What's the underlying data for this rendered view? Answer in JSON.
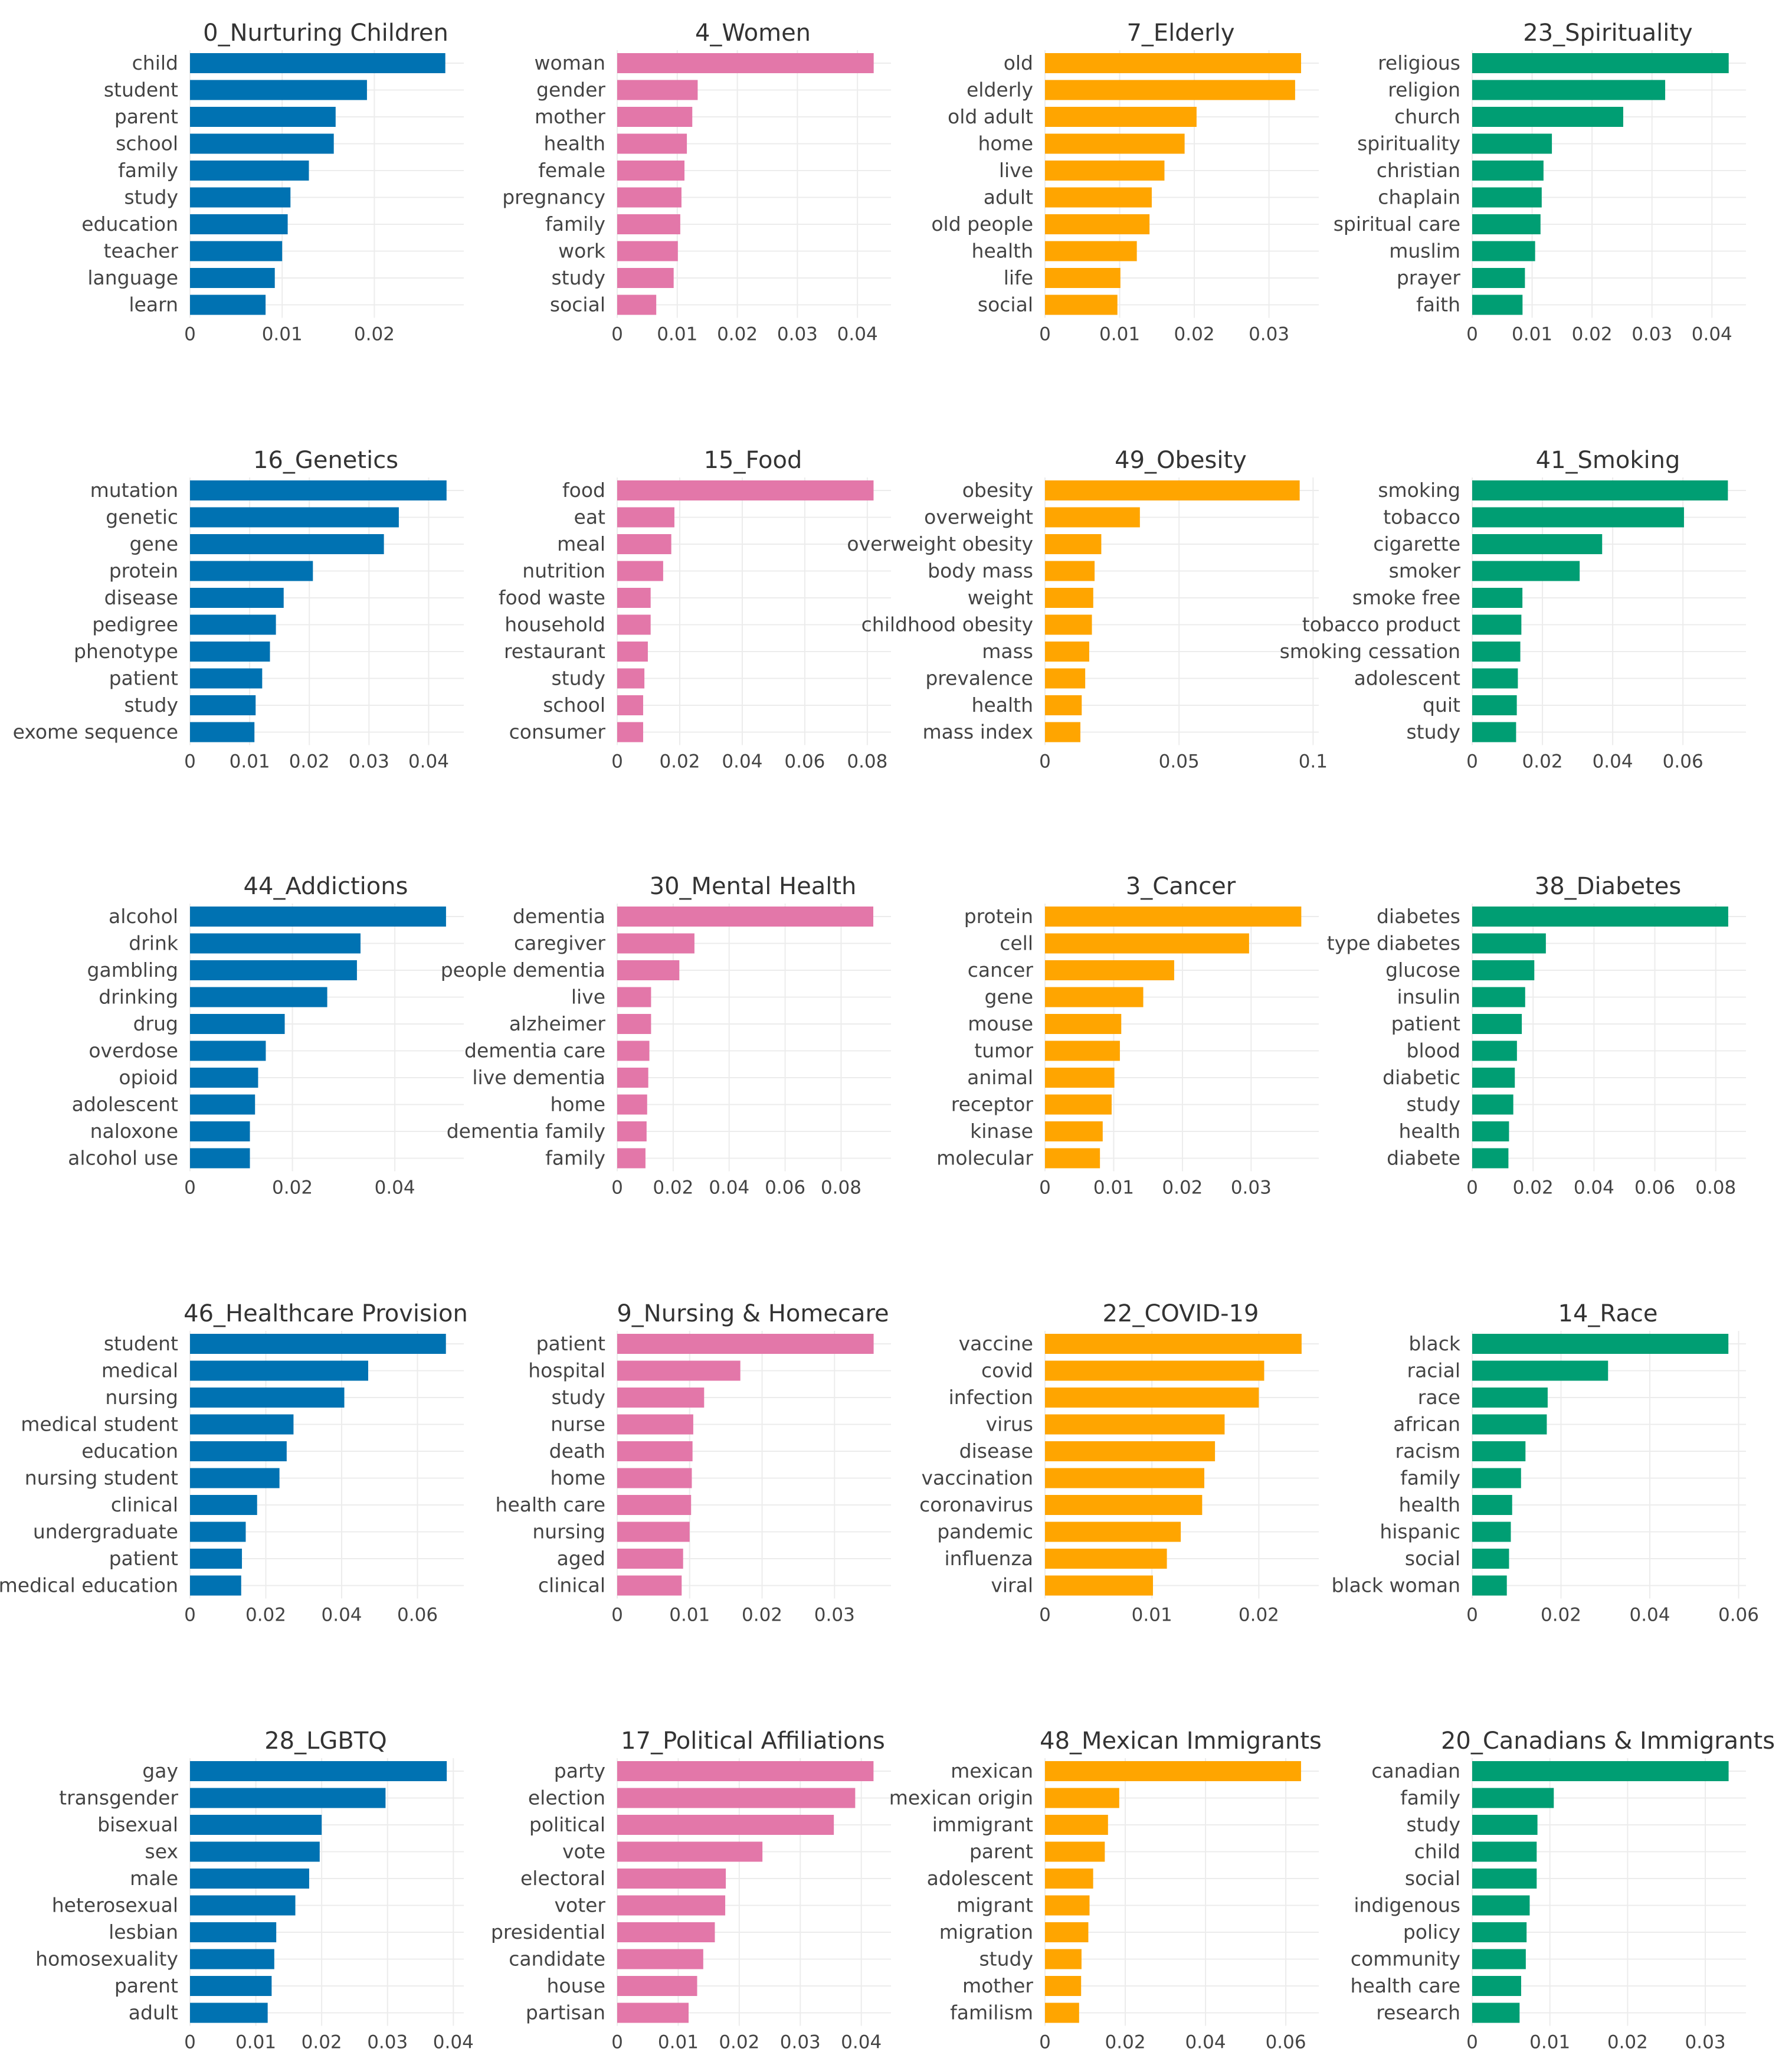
{
  "colors": {
    "blue": "#0072b2",
    "pink": "#e377a9",
    "orange": "#ffa500",
    "green": "#009e73"
  },
  "chart_data": [
    {
      "type": "bar",
      "orientation": "horizontal",
      "title": "0_Nurturing Children",
      "color": "blue",
      "categories": [
        "child",
        "student",
        "parent",
        "school",
        "family",
        "study",
        "education",
        "teacher",
        "language",
        "learn"
      ],
      "values": [
        0.0277,
        0.0192,
        0.0158,
        0.0156,
        0.0129,
        0.0109,
        0.0106,
        0.01,
        0.0092,
        0.0082
      ],
      "xlim": [
        0,
        0.029
      ],
      "ticks": [
        0,
        0.01,
        0.02
      ],
      "tick_labels": [
        "0",
        "0.01",
        "0.02"
      ]
    },
    {
      "type": "bar",
      "orientation": "horizontal",
      "title": "4_Women",
      "color": "pink",
      "categories": [
        "woman",
        "gender",
        "mother",
        "health",
        "female",
        "pregnancy",
        "family",
        "work",
        "study",
        "social"
      ],
      "values": [
        0.0427,
        0.0134,
        0.0125,
        0.0116,
        0.0112,
        0.0107,
        0.0105,
        0.0101,
        0.0094,
        0.0065
      ],
      "xlim": [
        0,
        0.0445
      ],
      "ticks": [
        0,
        0.01,
        0.02,
        0.03,
        0.04
      ],
      "tick_labels": [
        "0",
        "0.01",
        "0.02",
        "0.03",
        "0.04"
      ]
    },
    {
      "type": "bar",
      "orientation": "horizontal",
      "title": "7_Elderly",
      "color": "orange",
      "categories": [
        "old",
        "elderly",
        "old adult",
        "home",
        "live",
        "adult",
        "old people",
        "health",
        "life",
        "social"
      ],
      "values": [
        0.0343,
        0.0335,
        0.0203,
        0.0187,
        0.016,
        0.0143,
        0.014,
        0.0123,
        0.0101,
        0.0097
      ],
      "xlim": [
        0,
        0.0358
      ],
      "ticks": [
        0,
        0.01,
        0.02,
        0.03
      ],
      "tick_labels": [
        "0",
        "0.01",
        "0.02",
        "0.03"
      ]
    },
    {
      "type": "bar",
      "orientation": "horizontal",
      "title": "23_Spirituality",
      "color": "green",
      "categories": [
        "religious",
        "religion",
        "church",
        "spirituality",
        "christian",
        "chaplain",
        "spiritual care",
        "muslim",
        "prayer",
        "faith"
      ],
      "values": [
        0.0428,
        0.0322,
        0.0252,
        0.0133,
        0.0119,
        0.0116,
        0.0114,
        0.0105,
        0.0088,
        0.0084
      ],
      "xlim": [
        0,
        0.0446
      ],
      "ticks": [
        0,
        0.01,
        0.02,
        0.03,
        0.04
      ],
      "tick_labels": [
        "0",
        "0.01",
        "0.02",
        "0.03",
        "0.04"
      ]
    },
    {
      "type": "bar",
      "orientation": "horizontal",
      "title": "16_Genetics",
      "color": "blue",
      "categories": [
        "mutation",
        "genetic",
        "gene",
        "protein",
        "disease",
        "pedigree",
        "phenotype",
        "patient",
        "study",
        "exome sequence"
      ],
      "values": [
        0.043,
        0.035,
        0.0325,
        0.0206,
        0.0157,
        0.0144,
        0.0134,
        0.0121,
        0.011,
        0.0108
      ],
      "xlim": [
        0,
        0.0448
      ],
      "ticks": [
        0,
        0.01,
        0.02,
        0.03,
        0.04
      ],
      "tick_labels": [
        "0",
        "0.01",
        "0.02",
        "0.03",
        "0.04"
      ]
    },
    {
      "type": "bar",
      "orientation": "horizontal",
      "title": "15_Food",
      "color": "pink",
      "categories": [
        "food",
        "eat",
        "meal",
        "nutrition",
        "food waste",
        "household",
        "restaurant",
        "study",
        "school",
        "consumer"
      ],
      "values": [
        0.082,
        0.0183,
        0.0173,
        0.0147,
        0.0107,
        0.0107,
        0.0098,
        0.0087,
        0.0083,
        0.0083
      ],
      "xlim": [
        0,
        0.0855
      ],
      "ticks": [
        0,
        0.02,
        0.04,
        0.06,
        0.08
      ],
      "tick_labels": [
        "0",
        "0.02",
        "0.04",
        "0.06",
        "0.08"
      ]
    },
    {
      "type": "bar",
      "orientation": "horizontal",
      "title": "49_Obesity",
      "color": "orange",
      "categories": [
        "obesity",
        "overweight",
        "overweight obesity",
        "body mass",
        "weight",
        "childhood obesity",
        "mass",
        "prevalence",
        "health",
        "mass index"
      ],
      "values": [
        0.095,
        0.0354,
        0.021,
        0.0185,
        0.018,
        0.0175,
        0.0165,
        0.015,
        0.0137,
        0.0132
      ],
      "xlim": [
        0,
        0.0997
      ],
      "ticks": [
        0,
        0.05,
        0.1
      ],
      "tick_labels": [
        "0",
        "0.05",
        "0.1"
      ]
    },
    {
      "type": "bar",
      "orientation": "horizontal",
      "title": "41_Smoking",
      "color": "green",
      "categories": [
        "smoking",
        "tobacco",
        "cigarette",
        "smoker",
        "smoke free",
        "tobacco product",
        "smoking cessation",
        "adolescent",
        "quit",
        "study"
      ],
      "values": [
        0.0728,
        0.0603,
        0.037,
        0.0306,
        0.0143,
        0.014,
        0.0137,
        0.013,
        0.0127,
        0.0125
      ],
      "xlim": [
        0,
        0.0761
      ],
      "ticks": [
        0,
        0.02,
        0.04,
        0.06
      ],
      "tick_labels": [
        "0",
        "0.02",
        "0.04",
        "0.06"
      ]
    },
    {
      "type": "bar",
      "orientation": "horizontal",
      "title": "44_Addictions",
      "color": "blue",
      "categories": [
        "alcohol",
        "drink",
        "gambling",
        "drinking",
        "drug",
        "overdose",
        "opioid",
        "adolescent",
        "naloxone",
        "alcohol use"
      ],
      "values": [
        0.05,
        0.0333,
        0.0326,
        0.0268,
        0.0185,
        0.0148,
        0.0133,
        0.0127,
        0.0117,
        0.0117
      ],
      "xlim": [
        0,
        0.0522
      ],
      "ticks": [
        0,
        0.02,
        0.04
      ],
      "tick_labels": [
        "0",
        "0.02",
        "0.04"
      ]
    },
    {
      "type": "bar",
      "orientation": "horizontal",
      "title": "30_Mental Health",
      "color": "pink",
      "categories": [
        "dementia",
        "caregiver",
        "people dementia",
        "live",
        "alzheimer",
        "dementia care",
        "live dementia",
        "home",
        "dementia family",
        "family"
      ],
      "values": [
        0.0915,
        0.0276,
        0.0222,
        0.0121,
        0.0121,
        0.0115,
        0.0111,
        0.0107,
        0.0105,
        0.0101
      ],
      "xlim": [
        0,
        0.0955
      ],
      "ticks": [
        0,
        0.02,
        0.04,
        0.06,
        0.08
      ],
      "tick_labels": [
        "0",
        "0.02",
        "0.04",
        "0.06",
        "0.08"
      ]
    },
    {
      "type": "bar",
      "orientation": "horizontal",
      "title": "3_Cancer",
      "color": "orange",
      "categories": [
        "protein",
        "cell",
        "cancer",
        "gene",
        "mouse",
        "tumor",
        "animal",
        "receptor",
        "kinase",
        "molecular"
      ],
      "values": [
        0.0373,
        0.0297,
        0.0188,
        0.0143,
        0.0111,
        0.0109,
        0.0101,
        0.0097,
        0.0084,
        0.008
      ],
      "xlim": [
        0,
        0.0389
      ],
      "ticks": [
        0,
        0.01,
        0.02,
        0.03
      ],
      "tick_labels": [
        "0",
        "0.01",
        "0.02",
        "0.03"
      ]
    },
    {
      "type": "bar",
      "orientation": "horizontal",
      "title": "38_Diabetes",
      "color": "green",
      "categories": [
        "diabetes",
        "type diabetes",
        "glucose",
        "insulin",
        "patient",
        "blood",
        "diabetic",
        "study",
        "health",
        "diabete"
      ],
      "values": [
        0.0841,
        0.0242,
        0.0204,
        0.0174,
        0.0163,
        0.0147,
        0.014,
        0.0135,
        0.0121,
        0.0119
      ],
      "xlim": [
        0,
        0.0878
      ],
      "ticks": [
        0,
        0.02,
        0.04,
        0.06,
        0.08
      ],
      "tick_labels": [
        "0",
        "0.02",
        "0.04",
        "0.06",
        "0.08"
      ]
    },
    {
      "type": "bar",
      "orientation": "horizontal",
      "title": "46_Healthcare Provision",
      "color": "blue",
      "categories": [
        "student",
        "medical",
        "nursing",
        "medical student",
        "education",
        "nursing student",
        "clinical",
        "undergraduate",
        "patient",
        "medical education"
      ],
      "values": [
        0.0675,
        0.047,
        0.0407,
        0.0273,
        0.0255,
        0.0236,
        0.0177,
        0.0147,
        0.0137,
        0.0135
      ],
      "xlim": [
        0,
        0.0705
      ],
      "ticks": [
        0,
        0.02,
        0.04,
        0.06
      ],
      "tick_labels": [
        "0",
        "0.02",
        "0.04",
        "0.06"
      ]
    },
    {
      "type": "bar",
      "orientation": "horizontal",
      "title": "9_Nursing & Homecare",
      "color": "pink",
      "categories": [
        "patient",
        "hospital",
        "study",
        "nurse",
        "death",
        "home",
        "health care",
        "nursing",
        "aged",
        "clinical"
      ],
      "values": [
        0.0354,
        0.017,
        0.012,
        0.0105,
        0.0104,
        0.0103,
        0.0102,
        0.01,
        0.0091,
        0.0089
      ],
      "xlim": [
        0,
        0.0369
      ],
      "ticks": [
        0,
        0.01,
        0.02,
        0.03
      ],
      "tick_labels": [
        "0",
        "0.01",
        "0.02",
        "0.03"
      ]
    },
    {
      "type": "bar",
      "orientation": "horizontal",
      "title": "22_COVID-19",
      "color": "orange",
      "categories": [
        "vaccine",
        "covid",
        "infection",
        "virus",
        "disease",
        "vaccination",
        "coronavirus",
        "pandemic",
        "influenza",
        "viral"
      ],
      "values": [
        0.024,
        0.0205,
        0.02,
        0.0168,
        0.0159,
        0.0149,
        0.0147,
        0.0127,
        0.0114,
        0.0101
      ],
      "xlim": [
        0,
        0.025
      ],
      "ticks": [
        0,
        0.01,
        0.02
      ],
      "tick_labels": [
        "0",
        "0.01",
        "0.02"
      ]
    },
    {
      "type": "bar",
      "orientation": "horizontal",
      "title": "14_Race",
      "color": "green",
      "categories": [
        "black",
        "racial",
        "race",
        "african",
        "racism",
        "family",
        "health",
        "hispanic",
        "social",
        "black woman"
      ],
      "values": [
        0.0577,
        0.0306,
        0.017,
        0.0168,
        0.012,
        0.011,
        0.009,
        0.0087,
        0.0083,
        0.0078
      ],
      "xlim": [
        0,
        0.0602
      ],
      "ticks": [
        0,
        0.02,
        0.04,
        0.06
      ],
      "tick_labels": [
        "0",
        "0.02",
        "0.04",
        "0.06"
      ]
    },
    {
      "type": "bar",
      "orientation": "horizontal",
      "title": "28_LGBTQ",
      "color": "blue",
      "categories": [
        "gay",
        "transgender",
        "bisexual",
        "sex",
        "male",
        "heterosexual",
        "lesbian",
        "homosexuality",
        "parent",
        "adult"
      ],
      "values": [
        0.039,
        0.0297,
        0.02,
        0.0197,
        0.0181,
        0.016,
        0.0131,
        0.0128,
        0.0124,
        0.0118
      ],
      "xlim": [
        0,
        0.0406
      ],
      "ticks": [
        0,
        0.01,
        0.02,
        0.03,
        0.04
      ],
      "tick_labels": [
        "0",
        "0.01",
        "0.02",
        "0.03",
        "0.04"
      ]
    },
    {
      "type": "bar",
      "orientation": "horizontal",
      "title": "17_Political Affiliations",
      "color": "pink",
      "categories": [
        "party",
        "election",
        "political",
        "vote",
        "electoral",
        "voter",
        "presidential",
        "candidate",
        "house",
        "partisan"
      ],
      "values": [
        0.042,
        0.039,
        0.0355,
        0.0238,
        0.0178,
        0.0177,
        0.016,
        0.0141,
        0.0131,
        0.0117
      ],
      "xlim": [
        0,
        0.0438
      ],
      "ticks": [
        0,
        0.01,
        0.02,
        0.03,
        0.04
      ],
      "tick_labels": [
        "0",
        "0.01",
        "0.02",
        "0.03",
        "0.04"
      ]
    },
    {
      "type": "bar",
      "orientation": "horizontal",
      "title": "48_Mexican Immigrants",
      "color": "orange",
      "categories": [
        "mexican",
        "mexican origin",
        "immigrant",
        "parent",
        "adolescent",
        "migrant",
        "migration",
        "study",
        "mother",
        "familism"
      ],
      "values": [
        0.0638,
        0.0185,
        0.0157,
        0.0149,
        0.012,
        0.0111,
        0.0108,
        0.0091,
        0.009,
        0.0085
      ],
      "xlim": [
        0,
        0.0666
      ],
      "ticks": [
        0,
        0.02,
        0.04,
        0.06
      ],
      "tick_labels": [
        "0",
        "0.02",
        "0.04",
        "0.06"
      ]
    },
    {
      "type": "bar",
      "orientation": "horizontal",
      "title": "20_Canadians & Immigrants",
      "color": "green",
      "categories": [
        "canadian",
        "family",
        "study",
        "child",
        "social",
        "indigenous",
        "policy",
        "community",
        "health care",
        "research"
      ],
      "values": [
        0.033,
        0.0105,
        0.0084,
        0.0083,
        0.0083,
        0.0074,
        0.007,
        0.0069,
        0.0063,
        0.0061
      ],
      "xlim": [
        0,
        0.0344
      ],
      "ticks": [
        0,
        0.01,
        0.02,
        0.03
      ],
      "tick_labels": [
        "0",
        "0.01",
        "0.02",
        "0.03"
      ]
    }
  ]
}
